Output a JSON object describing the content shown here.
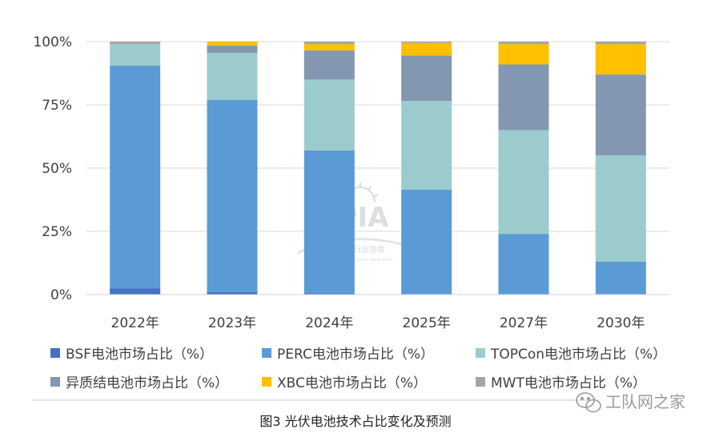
{
  "chart_data": {
    "type": "bar",
    "stacked": true,
    "categories": [
      "2022年",
      "2023年",
      "2024年",
      "2025年",
      "2027年",
      "2030年"
    ],
    "ylim": [
      0,
      100
    ],
    "yticks": [
      "0%",
      "25%",
      "50%",
      "75%",
      "100%"
    ],
    "grid": true,
    "legend_position": "bottom",
    "series": [
      {
        "name": "BSF电池市场占比（%）",
        "color": "#4472c4",
        "values": [
          2.5,
          1,
          0.5,
          0,
          0,
          0
        ]
      },
      {
        "name": "PERC电池市场占比（%）",
        "color": "#5b9bd5",
        "values": [
          88,
          76,
          56.5,
          41.5,
          24,
          13
        ]
      },
      {
        "name": "TOPCon电池市场占比（%）",
        "color": "#9ccbce",
        "values": [
          8.5,
          18.5,
          28,
          35,
          41,
          42
        ]
      },
      {
        "name": "异质结电池市场占比（%）",
        "color": "#8497b0",
        "values": [
          0,
          3,
          11.5,
          18,
          26,
          32
        ]
      },
      {
        "name": "XBC电池市场占比（%）",
        "color": "#ffc000",
        "values": [
          0,
          1.5,
          2.5,
          5,
          8,
          12
        ]
      },
      {
        "name": "MWT电池市场占比（%）",
        "color": "#a5a5a5",
        "values": [
          1,
          0,
          1,
          0.5,
          1,
          1
        ]
      }
    ]
  },
  "watermark": {
    "main": "CPIA",
    "sub": "中国光伏行业协会",
    "sub_en": "China Photovoltaic Industry Association"
  },
  "caption": "图3 光伏电池技术占比变化及预测",
  "brand": "工队网之家",
  "brand_icon": "wechat-icon"
}
